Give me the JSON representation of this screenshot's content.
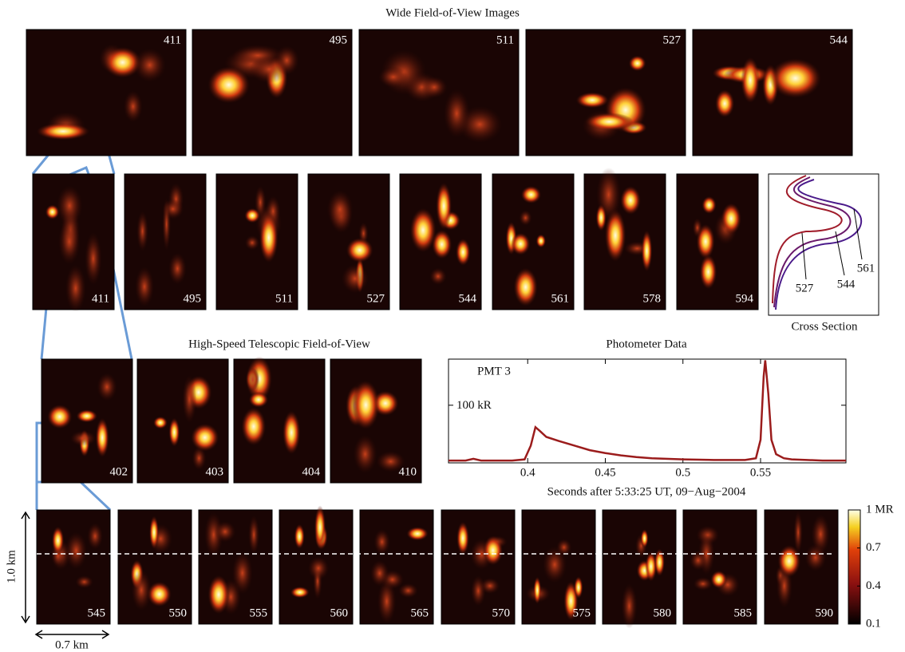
{
  "wide_fov": {
    "title": "Wide Field-of-View Images",
    "frames": [
      "411",
      "495",
      "511",
      "527",
      "544"
    ]
  },
  "zoom_row": {
    "frames": [
      "411",
      "495",
      "511",
      "527",
      "544",
      "561",
      "578",
      "594"
    ]
  },
  "cross_section": {
    "title": "Cross Section",
    "labels": [
      "527",
      "544",
      "561"
    ]
  },
  "telescopic": {
    "title": "High-Speed Telescopic Field-of-View",
    "frames": [
      "402",
      "403",
      "404",
      "410"
    ]
  },
  "chart_data": {
    "type": "line",
    "title": "Photometer Data",
    "annotation": "PMT 3",
    "x_label": "Seconds after 5:33:25 UT, 09−Aug−2004",
    "x": [
      0.349,
      0.36,
      0.365,
      0.37,
      0.38,
      0.39,
      0.398,
      0.402,
      0.405,
      0.408,
      0.412,
      0.42,
      0.43,
      0.44,
      0.45,
      0.46,
      0.47,
      0.48,
      0.5,
      0.52,
      0.54,
      0.547,
      0.55,
      0.552,
      0.553,
      0.555,
      0.557,
      0.56,
      0.565,
      0.57,
      0.58,
      0.59,
      0.605
    ],
    "series": [
      {
        "color": "#9b1c1c",
        "values": [
          4,
          4,
          7,
          4,
          4,
          4,
          6,
          30,
          62,
          55,
          45,
          38,
          30,
          22,
          17,
          13,
          10,
          8,
          6,
          5,
          5,
          8,
          40,
          150,
          178,
          120,
          40,
          15,
          8,
          6,
          5,
          4,
          4
        ]
      }
    ],
    "xlim": [
      0.349,
      0.605
    ],
    "ylim": [
      0,
      180
    ],
    "xticks": [
      0.4,
      0.45,
      0.5,
      0.55
    ],
    "yticks": [
      {
        "value": 100,
        "label": "100 kR"
      }
    ]
  },
  "bottom_row": {
    "frames": [
      "545",
      "550",
      "555",
      "560",
      "565",
      "570",
      "575",
      "580",
      "585",
      "590"
    ]
  },
  "colorbar": {
    "lim": [
      0.1,
      1
    ],
    "ticks": [
      0.1,
      0.4,
      0.7,
      {
        "value": 1,
        "label": "1 MR"
      }
    ]
  },
  "scale": {
    "vertical": "1.0 km",
    "horizontal": "0.7 km"
  }
}
